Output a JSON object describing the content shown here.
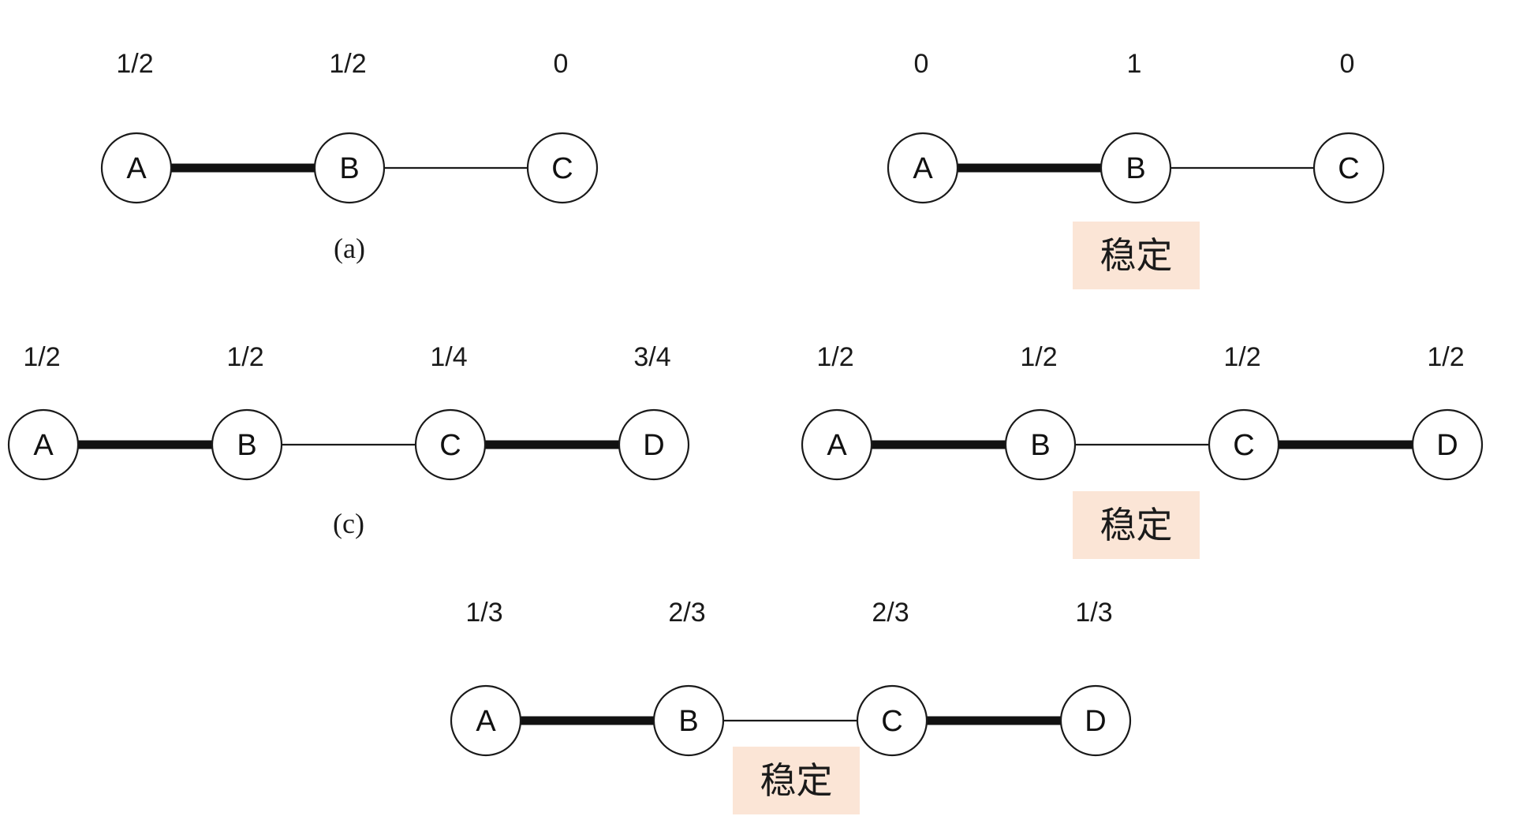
{
  "graphs": [
    {
      "id": "a",
      "nodes": [
        "A",
        "B",
        "C"
      ],
      "values": [
        "1/2",
        "1/2",
        "0"
      ],
      "edges": [
        {
          "from": 0,
          "to": 1,
          "matched": true
        },
        {
          "from": 1,
          "to": 2,
          "matched": false
        }
      ],
      "caption": "(a)",
      "stable_label": ""
    },
    {
      "id": "b",
      "nodes": [
        "A",
        "B",
        "C"
      ],
      "values": [
        "0",
        "1",
        "0"
      ],
      "edges": [
        {
          "from": 0,
          "to": 1,
          "matched": true
        },
        {
          "from": 1,
          "to": 2,
          "matched": false
        }
      ],
      "caption": "",
      "stable_label": "稳定"
    },
    {
      "id": "c",
      "nodes": [
        "A",
        "B",
        "C",
        "D"
      ],
      "values": [
        "1/2",
        "1/2",
        "1/4",
        "3/4"
      ],
      "edges": [
        {
          "from": 0,
          "to": 1,
          "matched": true
        },
        {
          "from": 1,
          "to": 2,
          "matched": false
        },
        {
          "from": 2,
          "to": 3,
          "matched": true
        }
      ],
      "caption": "(c)",
      "stable_label": ""
    },
    {
      "id": "d",
      "nodes": [
        "A",
        "B",
        "C",
        "D"
      ],
      "values": [
        "1/2",
        "1/2",
        "1/2",
        "1/2"
      ],
      "edges": [
        {
          "from": 0,
          "to": 1,
          "matched": true
        },
        {
          "from": 1,
          "to": 2,
          "matched": false
        },
        {
          "from": 2,
          "to": 3,
          "matched": true
        }
      ],
      "caption": "",
      "stable_label": "稳定"
    },
    {
      "id": "e",
      "nodes": [
        "A",
        "B",
        "C",
        "D"
      ],
      "values": [
        "1/3",
        "2/3",
        "2/3",
        "1/3"
      ],
      "edges": [
        {
          "from": 0,
          "to": 1,
          "matched": true
        },
        {
          "from": 1,
          "to": 2,
          "matched": false
        },
        {
          "from": 2,
          "to": 3,
          "matched": true
        }
      ],
      "caption": "",
      "stable_label": "稳定"
    }
  ]
}
